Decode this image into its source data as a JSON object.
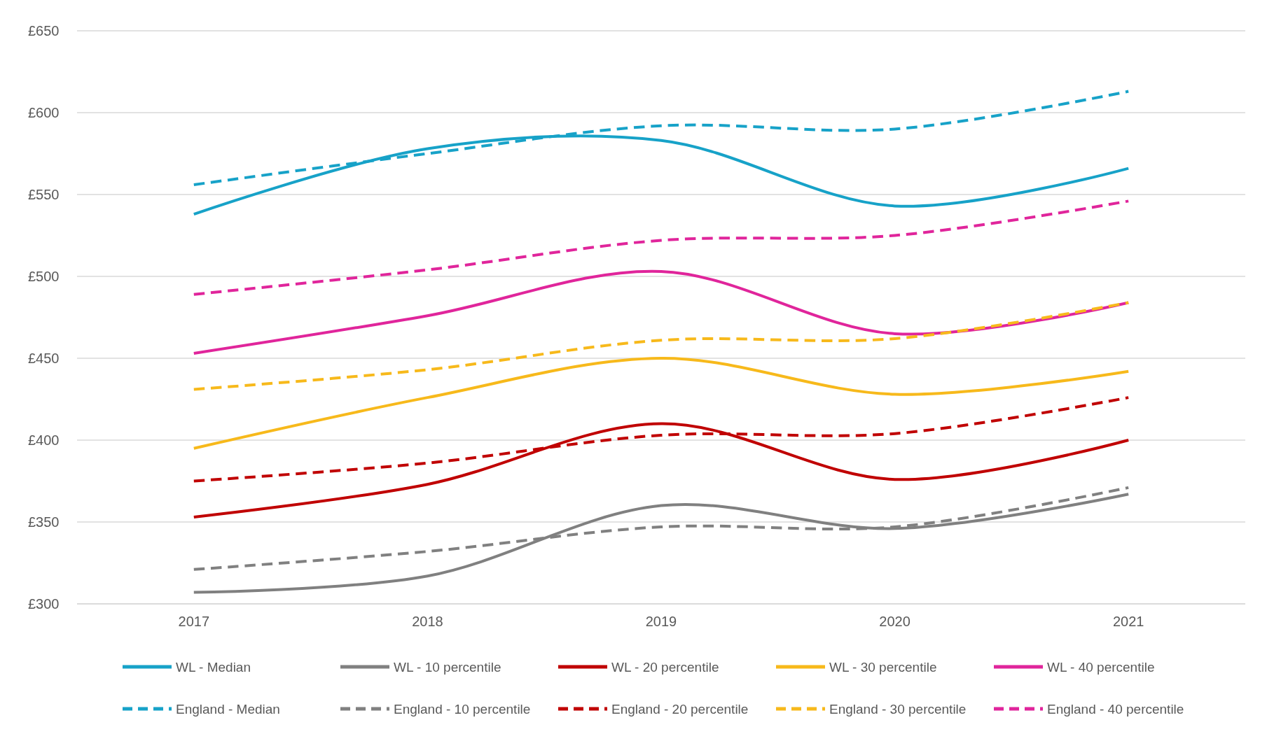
{
  "chart_data": {
    "type": "line",
    "categories": [
      "2017",
      "2018",
      "2019",
      "2020",
      "2021"
    ],
    "ylim": [
      300,
      650
    ],
    "yticks": [
      {
        "value": 300,
        "label": "£300"
      },
      {
        "value": 350,
        "label": "£350"
      },
      {
        "value": 400,
        "label": "£400"
      },
      {
        "value": 450,
        "label": "£450"
      },
      {
        "value": 500,
        "label": "£500"
      },
      {
        "value": 550,
        "label": "£550"
      },
      {
        "value": 600,
        "label": "£600"
      },
      {
        "value": 650,
        "label": "£650"
      }
    ],
    "grid": "y",
    "legend": "bottom",
    "series": [
      {
        "name": "WL - Median",
        "color": "#17a2c8",
        "line_style": "solid",
        "values": [
          538,
          578,
          583,
          543,
          566
        ]
      },
      {
        "name": "WL - 10 percentile",
        "color": "#808080",
        "line_style": "solid",
        "values": [
          307,
          317,
          360,
          346,
          367
        ]
      },
      {
        "name": "WL - 20 percentile",
        "color": "#c00000",
        "line_style": "solid",
        "values": [
          353,
          373,
          410,
          376,
          400
        ]
      },
      {
        "name": "WL - 30 percentile",
        "color": "#f7b91b",
        "line_style": "solid",
        "values": [
          395,
          426,
          450,
          428,
          442
        ]
      },
      {
        "name": "WL - 40 percentile",
        "color": "#e0259b",
        "line_style": "solid",
        "values": [
          453,
          476,
          503,
          465,
          484
        ]
      },
      {
        "name": "England - Median",
        "color": "#17a2c8",
        "line_style": "dashed",
        "values": [
          556,
          575,
          592,
          590,
          613
        ]
      },
      {
        "name": "England - 10 percentile",
        "color": "#808080",
        "line_style": "dashed",
        "values": [
          321,
          332,
          347,
          347,
          371
        ]
      },
      {
        "name": "England - 20 percentile",
        "color": "#c00000",
        "line_style": "dashed",
        "values": [
          375,
          386,
          403,
          404,
          426
        ]
      },
      {
        "name": "England - 30 percentile",
        "color": "#f7b91b",
        "line_style": "dashed",
        "values": [
          431,
          443,
          461,
          462,
          484
        ]
      },
      {
        "name": "England - 40 percentile",
        "color": "#e0259b",
        "line_style": "dashed",
        "values": [
          489,
          504,
          522,
          525,
          546
        ]
      }
    ]
  }
}
